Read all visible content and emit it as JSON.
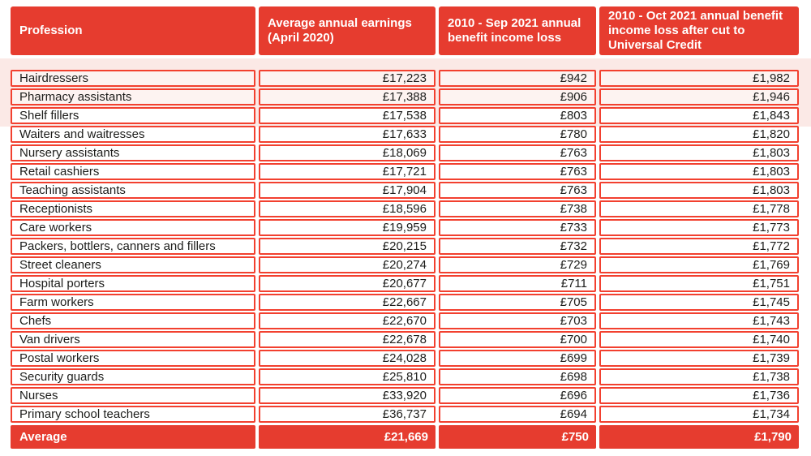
{
  "colors": {
    "block_red": "#e63c2f",
    "border_red": "#f2402f",
    "band_pink": "#fbe9e6",
    "row_tint_pink": "#fdf3f1",
    "text_ink": "#1d1d1b",
    "header_text": "#ffffff"
  },
  "chart_data": {
    "type": "table",
    "columns": [
      "Profession",
      "Average annual earnings (April 2020)",
      "2010 - Sep 2021 annual benefit income loss",
      "2010 - Oct 2021 annual benefit income loss after cut to Universal Credit"
    ],
    "rows": [
      [
        "Hairdressers",
        "£17,223",
        "£942",
        "£1,982"
      ],
      [
        "Pharmacy assistants",
        "£17,388",
        "£906",
        "£1,946"
      ],
      [
        "Shelf fillers",
        "£17,538",
        "£803",
        "£1,843"
      ],
      [
        "Waiters and waitresses",
        "£17,633",
        "£780",
        "£1,820"
      ],
      [
        "Nursery assistants",
        "£18,069",
        "£763",
        "£1,803"
      ],
      [
        "Retail cashiers",
        "£17,721",
        "£763",
        "£1,803"
      ],
      [
        "Teaching assistants",
        "£17,904",
        "£763",
        "£1,803"
      ],
      [
        "Receptionists",
        "£18,596",
        "£738",
        "£1,778"
      ],
      [
        "Care workers",
        "£19,959",
        "£733",
        "£1,773"
      ],
      [
        "Packers, bottlers, canners and fillers",
        "£20,215",
        "£732",
        "£1,772"
      ],
      [
        "Street cleaners",
        "£20,274",
        "£729",
        "£1,769"
      ],
      [
        "Hospital porters",
        "£20,677",
        "£711",
        "£1,751"
      ],
      [
        "Farm workers",
        "£22,667",
        "£705",
        "£1,745"
      ],
      [
        "Chefs",
        "£22,670",
        "£703",
        "£1,743"
      ],
      [
        "Van drivers",
        "£22,678",
        "£700",
        "£1,740"
      ],
      [
        "Postal workers",
        "£24,028",
        "£699",
        "£1,739"
      ],
      [
        "Security guards",
        "£25,810",
        "£698",
        "£1,738"
      ],
      [
        "Nurses",
        "£33,920",
        "£696",
        "£1,736"
      ],
      [
        "Primary school teachers",
        "£36,737",
        "£694",
        "£1,734"
      ]
    ],
    "footer": [
      "Average",
      "£21,669",
      "£750",
      "£1,790"
    ],
    "layout_hints": {
      "tinted_row_count": 2,
      "value_alignment": "right",
      "grid": "separated red-bordered cells"
    }
  }
}
